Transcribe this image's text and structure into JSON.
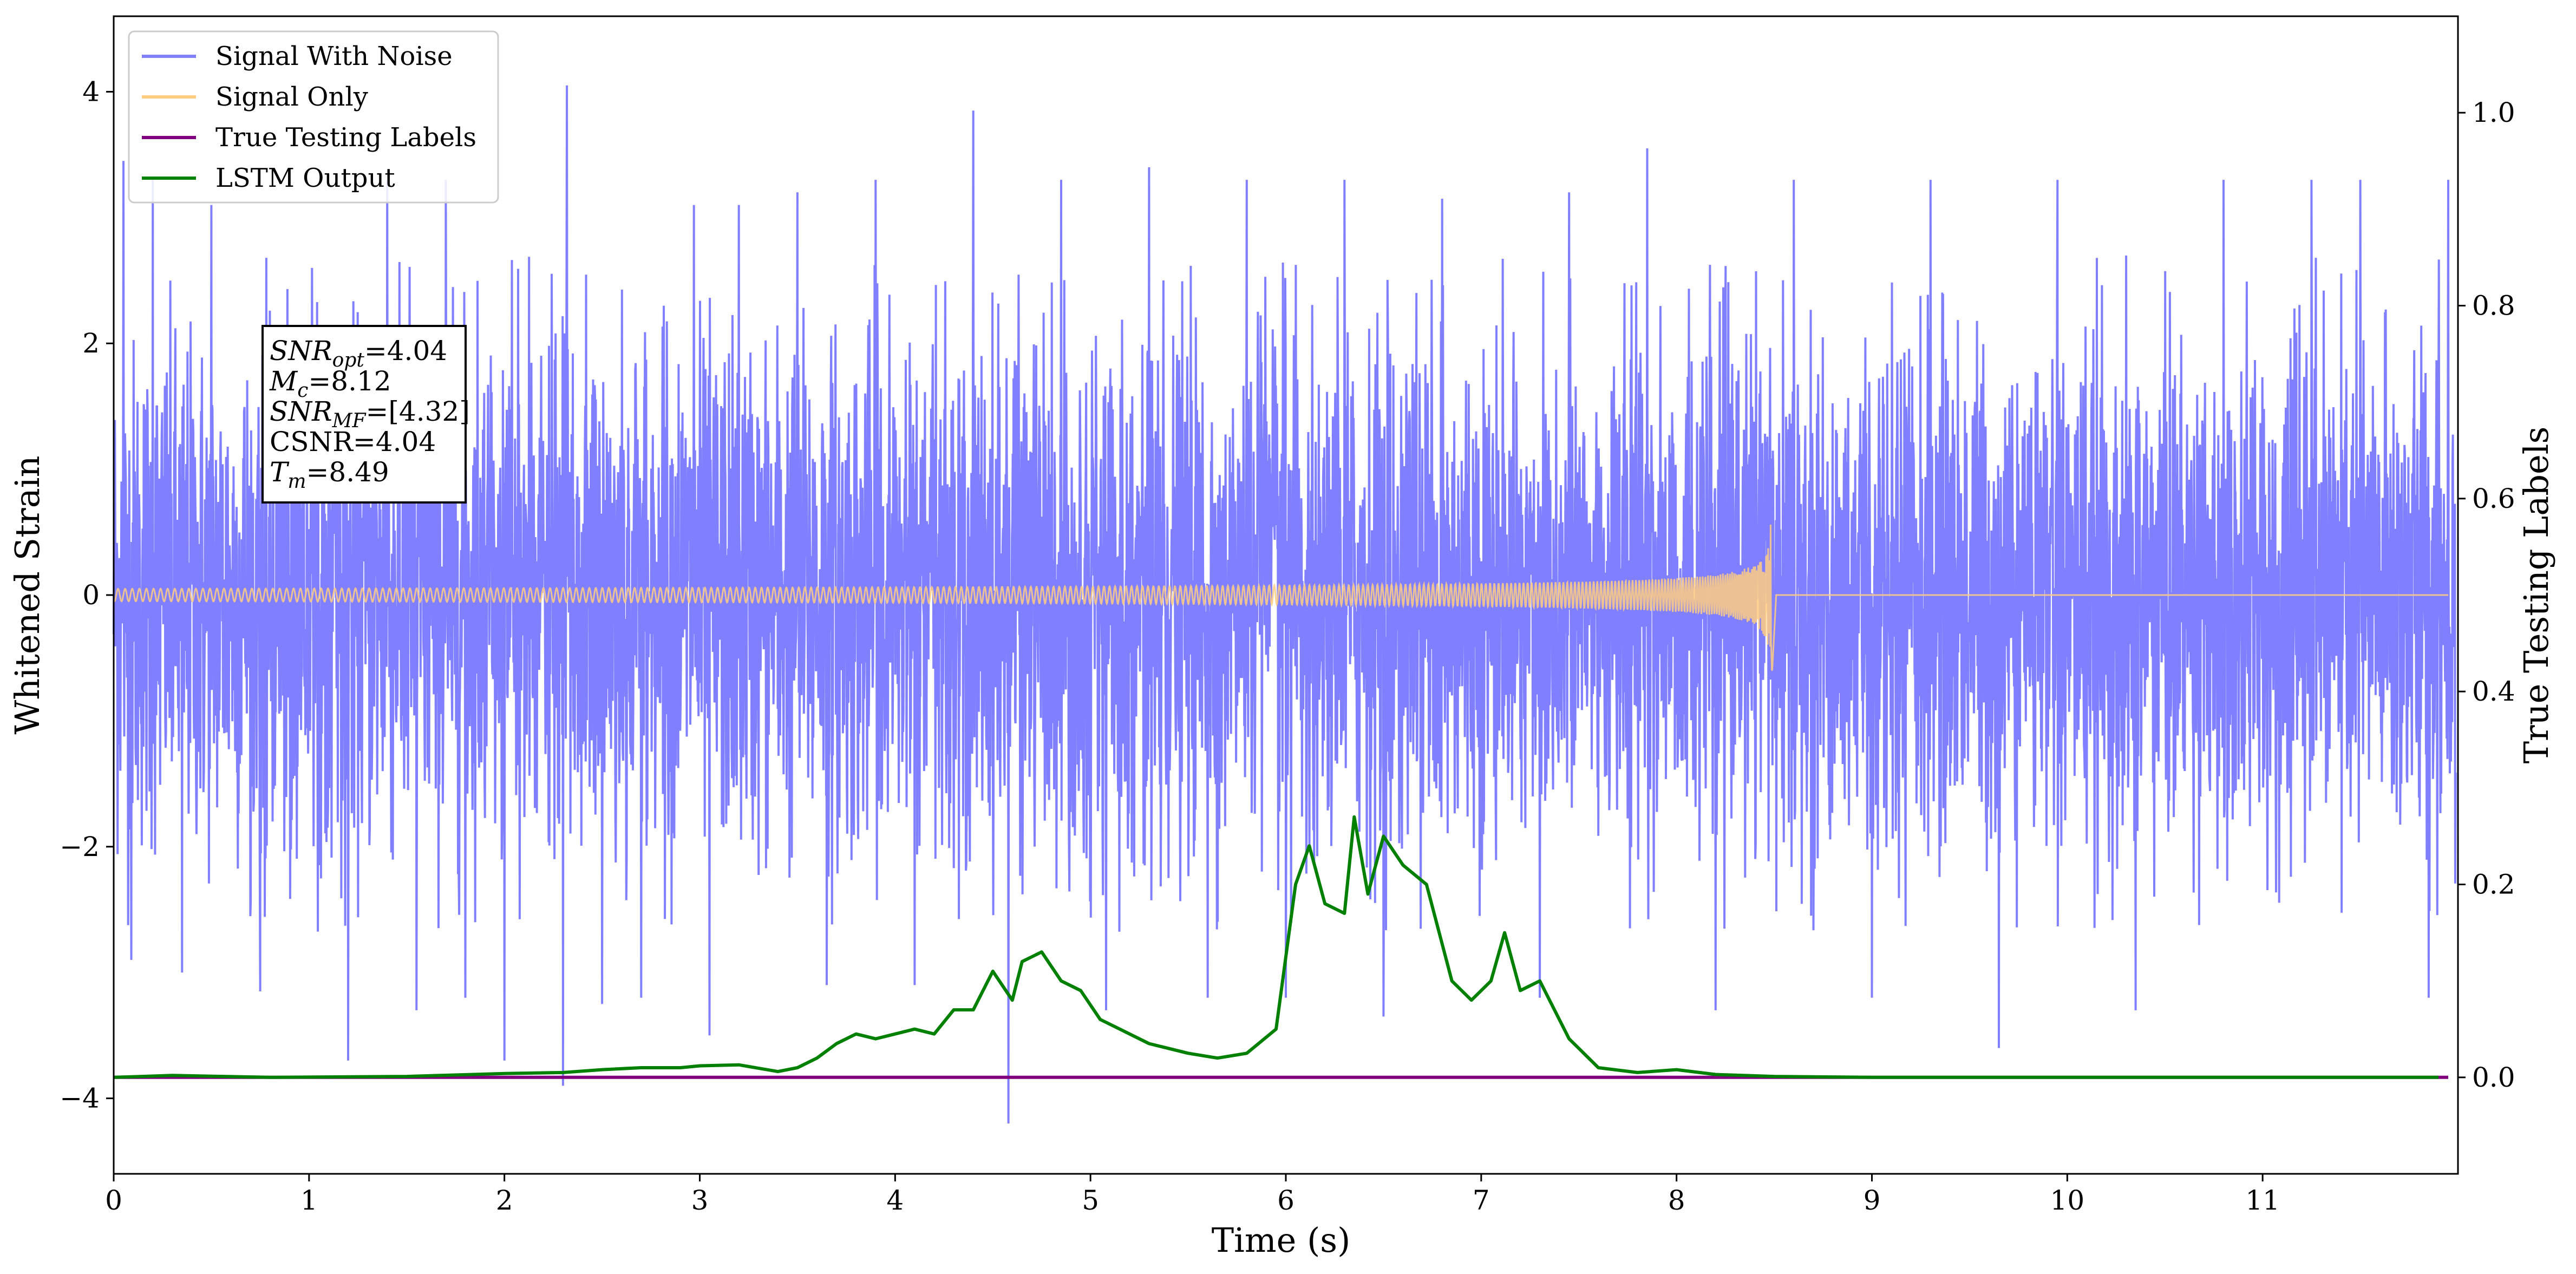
{
  "chart_data": {
    "type": "line",
    "xlabel": "Time (s)",
    "ylabel": "Whitened Strain",
    "y2label": "True Testing Labels",
    "xlim": [
      0,
      12
    ],
    "ylim": [
      -4.6,
      4.6
    ],
    "y2lim": [
      -0.1,
      1.1
    ],
    "xticks": [
      "0",
      "1",
      "2",
      "3",
      "4",
      "5",
      "6",
      "7",
      "8",
      "9",
      "10",
      "11"
    ],
    "yticks": [
      "−4",
      "−2",
      "0",
      "2",
      "4"
    ],
    "y2ticks": [
      "0.0",
      "0.2",
      "0.4",
      "0.6",
      "0.8",
      "1.0"
    ],
    "legend_position": "top-left",
    "grid": false,
    "series": [
      {
        "name": "Signal With Noise",
        "color": "#7f7fff",
        "axis": "left",
        "description_values": "dense noise approx. amplitude ±2.6 with spikes to ±4",
        "spikes": [
          [
            0.05,
            3.45
          ],
          [
            0.09,
            -2.9
          ],
          [
            0.2,
            3.3
          ],
          [
            0.35,
            -3.0
          ],
          [
            0.5,
            3.1
          ],
          [
            0.75,
            -3.15
          ],
          [
            1.2,
            -3.7
          ],
          [
            1.4,
            3.3
          ],
          [
            1.55,
            -3.3
          ],
          [
            1.7,
            3.3
          ],
          [
            1.8,
            -3.2
          ],
          [
            2.0,
            -3.7
          ],
          [
            2.3,
            -3.9
          ],
          [
            2.32,
            4.05
          ],
          [
            2.5,
            -3.25
          ],
          [
            2.7,
            -3.2
          ],
          [
            2.97,
            3.1
          ],
          [
            3.05,
            -3.5
          ],
          [
            3.2,
            3.1
          ],
          [
            3.5,
            3.2
          ],
          [
            3.65,
            -3.1
          ],
          [
            3.9,
            3.3
          ],
          [
            4.1,
            -3.1
          ],
          [
            4.4,
            3.85
          ],
          [
            4.58,
            -4.2
          ],
          [
            4.85,
            3.3
          ],
          [
            5.08,
            -3.3
          ],
          [
            5.3,
            3.4
          ],
          [
            5.6,
            -3.2
          ],
          [
            5.8,
            3.3
          ],
          [
            6.0,
            -3.2
          ],
          [
            6.3,
            3.3
          ],
          [
            6.5,
            -3.35
          ],
          [
            6.8,
            3.15
          ],
          [
            7.3,
            -3.2
          ],
          [
            7.45,
            3.2
          ],
          [
            7.85,
            3.55
          ],
          [
            8.2,
            -3.3
          ],
          [
            8.6,
            3.3
          ],
          [
            9.0,
            -3.2
          ],
          [
            9.3,
            3.3
          ],
          [
            9.65,
            -3.6
          ],
          [
            9.95,
            3.3
          ],
          [
            10.35,
            -3.3
          ],
          [
            10.8,
            3.3
          ],
          [
            11.25,
            3.3
          ],
          [
            11.5,
            3.3
          ],
          [
            11.85,
            -3.2
          ],
          [
            11.95,
            3.3
          ]
        ]
      },
      {
        "name": "Signal Only",
        "color": "#ffcc80",
        "axis": "left",
        "chirp": {
          "start": 0.0,
          "merger": 8.49,
          "amplitude_start": 0.05,
          "amplitude_peak": 0.6
        }
      },
      {
        "name": "True Testing Labels",
        "color": "#800080",
        "axis": "right",
        "x": [
          0,
          11.95
        ],
        "y": [
          0.0,
          0.0
        ]
      },
      {
        "name": "LSTM Output",
        "color": "#008000",
        "axis": "right",
        "x": [
          0.0,
          0.3,
          0.8,
          1.5,
          2.0,
          2.3,
          2.5,
          2.7,
          2.9,
          3.0,
          3.2,
          3.4,
          3.5,
          3.6,
          3.7,
          3.8,
          3.9,
          4.0,
          4.1,
          4.2,
          4.3,
          4.4,
          4.5,
          4.6,
          4.65,
          4.75,
          4.85,
          4.95,
          5.05,
          5.15,
          5.3,
          5.5,
          5.65,
          5.8,
          5.95,
          6.05,
          6.12,
          6.2,
          6.3,
          6.35,
          6.42,
          6.5,
          6.6,
          6.72,
          6.85,
          6.95,
          7.05,
          7.12,
          7.2,
          7.3,
          7.45,
          7.6,
          7.8,
          8.0,
          8.2,
          8.5,
          9.0,
          11.9
        ],
        "y": [
          0.0,
          0.002,
          0.0,
          0.001,
          0.004,
          0.005,
          0.008,
          0.01,
          0.01,
          0.012,
          0.013,
          0.006,
          0.01,
          0.02,
          0.035,
          0.045,
          0.04,
          0.045,
          0.05,
          0.045,
          0.07,
          0.07,
          0.11,
          0.08,
          0.12,
          0.13,
          0.1,
          0.09,
          0.06,
          0.05,
          0.035,
          0.025,
          0.02,
          0.025,
          0.05,
          0.2,
          0.24,
          0.18,
          0.17,
          0.27,
          0.19,
          0.25,
          0.22,
          0.2,
          0.1,
          0.08,
          0.1,
          0.15,
          0.09,
          0.1,
          0.04,
          0.01,
          0.005,
          0.008,
          0.003,
          0.001,
          0.0,
          0.0
        ]
      }
    ],
    "annotation": {
      "lines": [
        {
          "base": "SNR",
          "sub": "opt",
          "value": "=4.04"
        },
        {
          "base": "M",
          "sub": "c",
          "value": "=8.12"
        },
        {
          "base": "SNR",
          "sub": "MF",
          "value": "=[4.32]"
        },
        {
          "base": "CSNR",
          "sub": "",
          "value": "=4.04"
        },
        {
          "base": "T",
          "sub": "m",
          "value": "=8.49"
        }
      ]
    }
  }
}
